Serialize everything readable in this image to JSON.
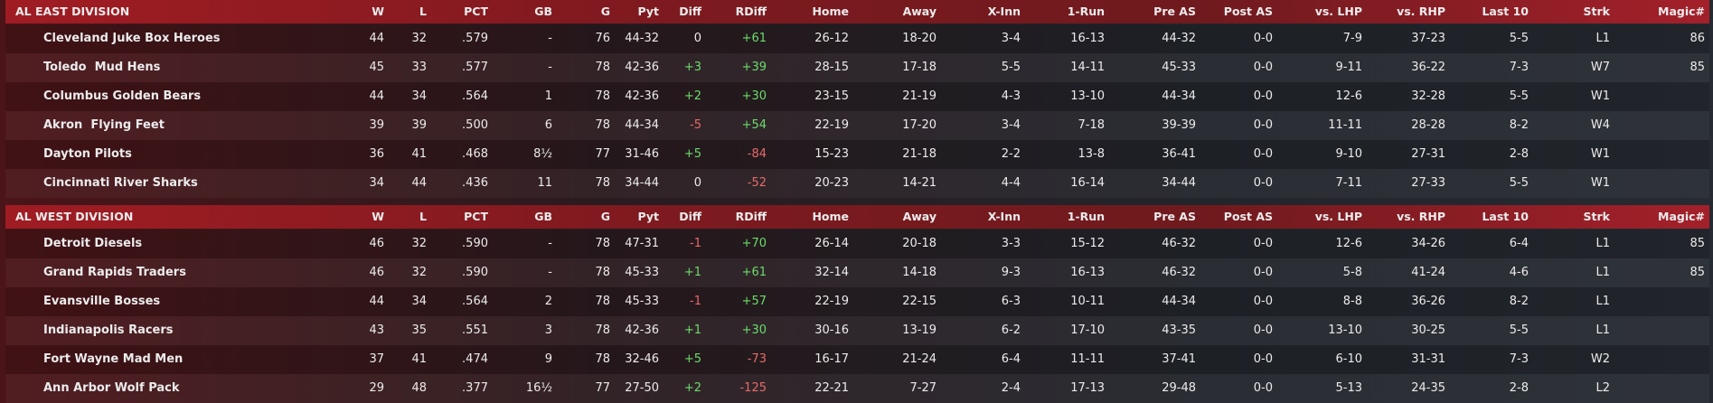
{
  "sections": [
    {
      "header": [
        "AL EAST DIVISION",
        "W",
        "L",
        "PCT",
        "GB",
        "G",
        "Pyt",
        "Diff",
        "RDiff",
        "Home",
        "Away",
        "X-Inn",
        "1-Run",
        "Pre AS",
        "Post AS",
        "vs. LHP",
        "vs. RHP",
        "Last 10",
        "Strk",
        "Magic#"
      ],
      "rows": [
        [
          "Cleveland Juke Box Heroes",
          "44",
          "32",
          ".579",
          "-",
          "76",
          "44-32",
          "0",
          "+61",
          "26-12",
          "18-20",
          "3-4",
          "16-13",
          "44-32",
          "0-0",
          "7-9",
          "37-23",
          "5-5",
          "L1",
          "86"
        ],
        [
          "Toledo  Mud Hens",
          "45",
          "33",
          ".577",
          "-",
          "78",
          "42-36",
          "+3",
          "+39",
          "28-15",
          "17-18",
          "5-5",
          "14-11",
          "45-33",
          "0-0",
          "9-11",
          "36-22",
          "7-3",
          "W7",
          "85"
        ],
        [
          "Columbus Golden Bears",
          "44",
          "34",
          ".564",
          "1",
          "78",
          "42-36",
          "+2",
          "+30",
          "23-15",
          "21-19",
          "4-3",
          "13-10",
          "44-34",
          "0-0",
          "12-6",
          "32-28",
          "5-5",
          "W1"
        ],
        [
          "Akron  Flying Feet",
          "39",
          "39",
          ".500",
          "6",
          "78",
          "44-34",
          "-5",
          "+54",
          "22-19",
          "17-20",
          "3-4",
          "7-18",
          "39-39",
          "0-0",
          "11-11",
          "28-28",
          "8-2",
          "W4"
        ],
        [
          "Dayton Pilots",
          "36",
          "41",
          ".468",
          "8½",
          "77",
          "31-46",
          "+5",
          "-84",
          "15-23",
          "21-18",
          "2-2",
          "13-8",
          "36-41",
          "0-0",
          "9-10",
          "27-31",
          "2-8",
          "W1"
        ],
        [
          "Cincinnati River Sharks",
          "34",
          "44",
          ".436",
          "11",
          "78",
          "34-44",
          "0",
          "-52",
          "20-23",
          "14-21",
          "4-4",
          "16-14",
          "34-44",
          "0-0",
          "7-11",
          "27-33",
          "5-5",
          "W1"
        ]
      ]
    },
    {
      "header": [
        "AL WEST DIVISION",
        "W",
        "L",
        "PCT",
        "GB",
        "G",
        "Pyt",
        "Diff",
        "RDiff",
        "Home",
        "Away",
        "X-Inn",
        "1-Run",
        "Pre AS",
        "Post AS",
        "vs. LHP",
        "vs. RHP",
        "Last 10",
        "Strk",
        "Magic#"
      ],
      "rows": [
        [
          "Detroit Diesels",
          "46",
          "32",
          ".590",
          "-",
          "78",
          "47-31",
          "-1",
          "+70",
          "26-14",
          "20-18",
          "3-3",
          "15-12",
          "46-32",
          "0-0",
          "12-6",
          "34-26",
          "6-4",
          "L1",
          "85"
        ],
        [
          "Grand Rapids Traders",
          "46",
          "32",
          ".590",
          "-",
          "78",
          "45-33",
          "+1",
          "+61",
          "32-14",
          "14-18",
          "9-3",
          "16-13",
          "46-32",
          "0-0",
          "5-8",
          "41-24",
          "4-6",
          "L1",
          "85"
        ],
        [
          "Evansville Bosses",
          "44",
          "34",
          ".564",
          "2",
          "78",
          "45-33",
          "-1",
          "+57",
          "22-19",
          "22-15",
          "6-3",
          "10-11",
          "44-34",
          "0-0",
          "8-8",
          "36-26",
          "8-2",
          "L1"
        ],
        [
          "Indianapolis Racers",
          "43",
          "35",
          ".551",
          "3",
          "78",
          "42-36",
          "+1",
          "+30",
          "30-16",
          "13-19",
          "6-2",
          "17-10",
          "43-35",
          "0-0",
          "13-10",
          "30-25",
          "5-5",
          "L1"
        ],
        [
          "Fort Wayne Mad Men",
          "37",
          "41",
          ".474",
          "9",
          "78",
          "32-46",
          "+5",
          "-73",
          "16-17",
          "21-24",
          "6-4",
          "11-11",
          "37-41",
          "0-0",
          "6-10",
          "31-31",
          "7-3",
          "W2"
        ],
        [
          "Ann Arbor Wolf Pack",
          "29",
          "48",
          ".377",
          "16½",
          "77",
          "27-50",
          "+2",
          "-125",
          "22-21",
          "7-27",
          "2-4",
          "17-13",
          "29-48",
          "0-0",
          "5-13",
          "24-35",
          "2-8",
          "L2"
        ]
      ]
    }
  ]
}
